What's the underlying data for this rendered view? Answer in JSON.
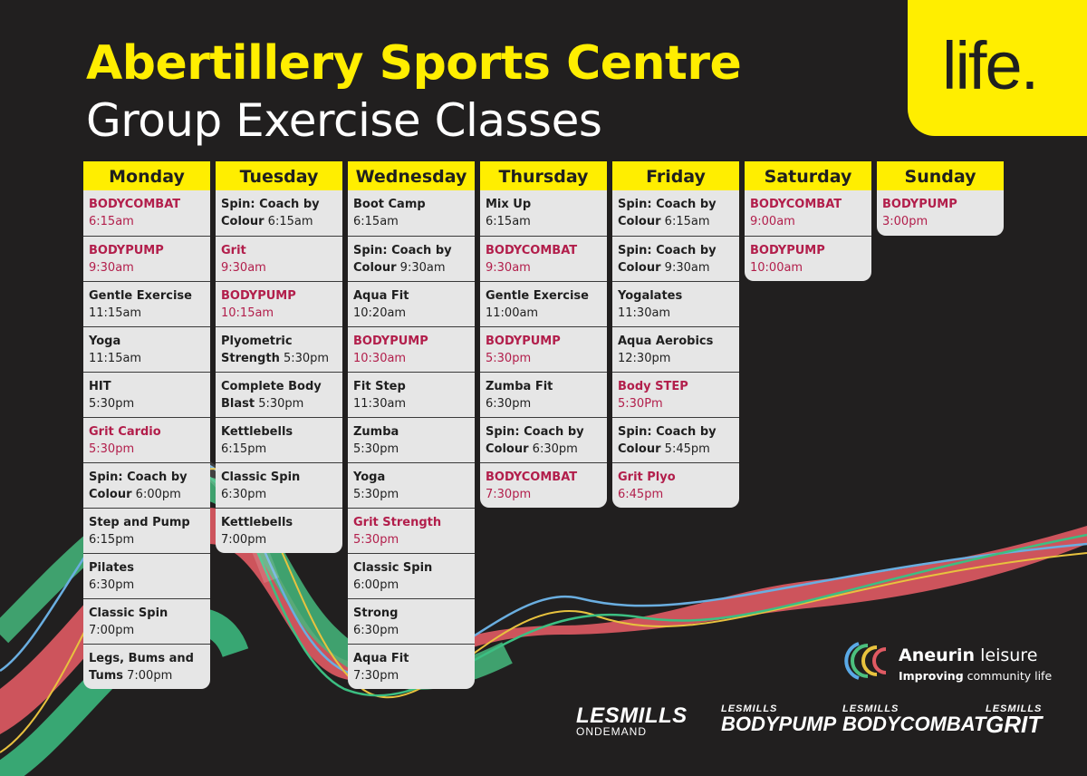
{
  "title": "Abertillery Sports Centre",
  "subtitle": "Group Exercise Classes",
  "brand_logo": "life.",
  "days": [
    {
      "day": "Monday",
      "classes": [
        {
          "name": "BODYCOMBAT",
          "time": "6:15am",
          "highlight": true
        },
        {
          "name": "BODYPUMP",
          "time": "9:30am",
          "highlight": true
        },
        {
          "name": "Gentle Exercise",
          "time": "11:15am",
          "highlight": false
        },
        {
          "name": "Yoga",
          "time": "11:15am",
          "highlight": false
        },
        {
          "name": "HIT",
          "time": "5:30pm",
          "highlight": false
        },
        {
          "name": "Grit Cardio",
          "time": "5:30pm",
          "highlight": true
        },
        {
          "name": "Spin: Coach by Colour",
          "time": "6:00pm",
          "highlight": false
        },
        {
          "name": "Step and Pump",
          "time": "6:15pm",
          "highlight": false
        },
        {
          "name": "Pilates",
          "time": "6:30pm",
          "highlight": false
        },
        {
          "name": "Classic Spin",
          "time": "7:00pm",
          "highlight": false
        },
        {
          "name": "Legs, Bums and Tums",
          "time": "7:00pm",
          "highlight": false
        }
      ]
    },
    {
      "day": "Tuesday",
      "classes": [
        {
          "name": "Spin: Coach by Colour",
          "time": "6:15am",
          "highlight": false
        },
        {
          "name": "Grit",
          "time": "9:30am",
          "highlight": true
        },
        {
          "name": "BODYPUMP",
          "time": "10:15am",
          "highlight": true
        },
        {
          "name": "Plyometric Strength",
          "time": "5:30pm",
          "highlight": false
        },
        {
          "name": "Complete Body Blast",
          "time": "5:30pm",
          "highlight": false
        },
        {
          "name": "Kettlebells",
          "time": "6:15pm",
          "highlight": false
        },
        {
          "name": "Classic Spin",
          "time": "6:30pm",
          "highlight": false
        },
        {
          "name": "Kettlebells",
          "time": "7:00pm",
          "highlight": false
        }
      ]
    },
    {
      "day": "Wednesday",
      "classes": [
        {
          "name": "Boot Camp",
          "time": "6:15am",
          "highlight": false
        },
        {
          "name": "Spin: Coach by Colour",
          "time": "9:30am",
          "highlight": false
        },
        {
          "name": "Aqua Fit",
          "time": "10:20am",
          "highlight": false
        },
        {
          "name": "BODYPUMP",
          "time": "10:30am",
          "highlight": true
        },
        {
          "name": "Fit Step",
          "time": "11:30am",
          "highlight": false
        },
        {
          "name": "Zumba",
          "time": "5:30pm",
          "highlight": false
        },
        {
          "name": "Yoga",
          "time": "5:30pm",
          "highlight": false
        },
        {
          "name": "Grit Strength",
          "time": "5:30pm",
          "highlight": true
        },
        {
          "name": "Classic Spin",
          "time": "6:00pm",
          "highlight": false
        },
        {
          "name": "Strong",
          "time": "6:30pm",
          "highlight": false
        },
        {
          "name": "Aqua Fit",
          "time": "7:30pm",
          "highlight": false
        }
      ]
    },
    {
      "day": "Thursday",
      "classes": [
        {
          "name": "Mix Up",
          "time": "6:15am",
          "highlight": false
        },
        {
          "name": "BODYCOMBAT",
          "time": "9:30am",
          "highlight": true
        },
        {
          "name": "Gentle Exercise",
          "time": "11:00am",
          "highlight": false
        },
        {
          "name": "BODYPUMP",
          "time": "5:30pm",
          "highlight": true
        },
        {
          "name": "Zumba Fit",
          "time": "6:30pm",
          "highlight": false
        },
        {
          "name": "Spin: Coach by Colour",
          "time": "6:30pm",
          "highlight": false
        },
        {
          "name": "BODYCOMBAT",
          "time": "7:30pm",
          "highlight": true
        }
      ]
    },
    {
      "day": "Friday",
      "classes": [
        {
          "name": "Spin: Coach by Colour",
          "time": "6:15am",
          "highlight": false
        },
        {
          "name": "Spin: Coach by Colour",
          "time": "9:30am",
          "highlight": false
        },
        {
          "name": "Yogalates",
          "time": "11:30am",
          "highlight": false
        },
        {
          "name": "Aqua Aerobics",
          "time": "12:30pm",
          "highlight": false
        },
        {
          "name": "Body STEP",
          "time": "5:30Pm",
          "highlight": true
        },
        {
          "name": "Spin: Coach by Colour",
          "time": "5:45pm",
          "highlight": false
        },
        {
          "name": "Grit Plyo",
          "time": "6:45pm",
          "highlight": true
        }
      ]
    },
    {
      "day": "Saturday",
      "classes": [
        {
          "name": "BODYCOMBAT",
          "time": "9:00am",
          "highlight": true
        },
        {
          "name": "BODYPUMP",
          "time": "10:00am",
          "highlight": true
        }
      ]
    },
    {
      "day": "Sunday",
      "classes": [
        {
          "name": "BODYPUMP",
          "time": "3:00pm",
          "highlight": true
        }
      ]
    }
  ],
  "aneurin": {
    "name_bold": "Aneurin",
    "name_light": "leisure",
    "tagline_bold": "Improving",
    "tagline_light": "community life"
  },
  "partner_logos": [
    {
      "main": "LESMILLS",
      "sub": "ONDEMAND"
    },
    {
      "main": "BODYPUMP",
      "sub": "LESMILLS"
    },
    {
      "main": "BODYCOMBAT",
      "sub": "LESMILLS"
    },
    {
      "main": "GRIT",
      "sub": "LESMILLS"
    }
  ],
  "colors": {
    "background": "#211f1f",
    "accent_yellow": "#ffee00",
    "highlight_red": "#b21e4b",
    "cell_grey": "#e6e6e6"
  }
}
